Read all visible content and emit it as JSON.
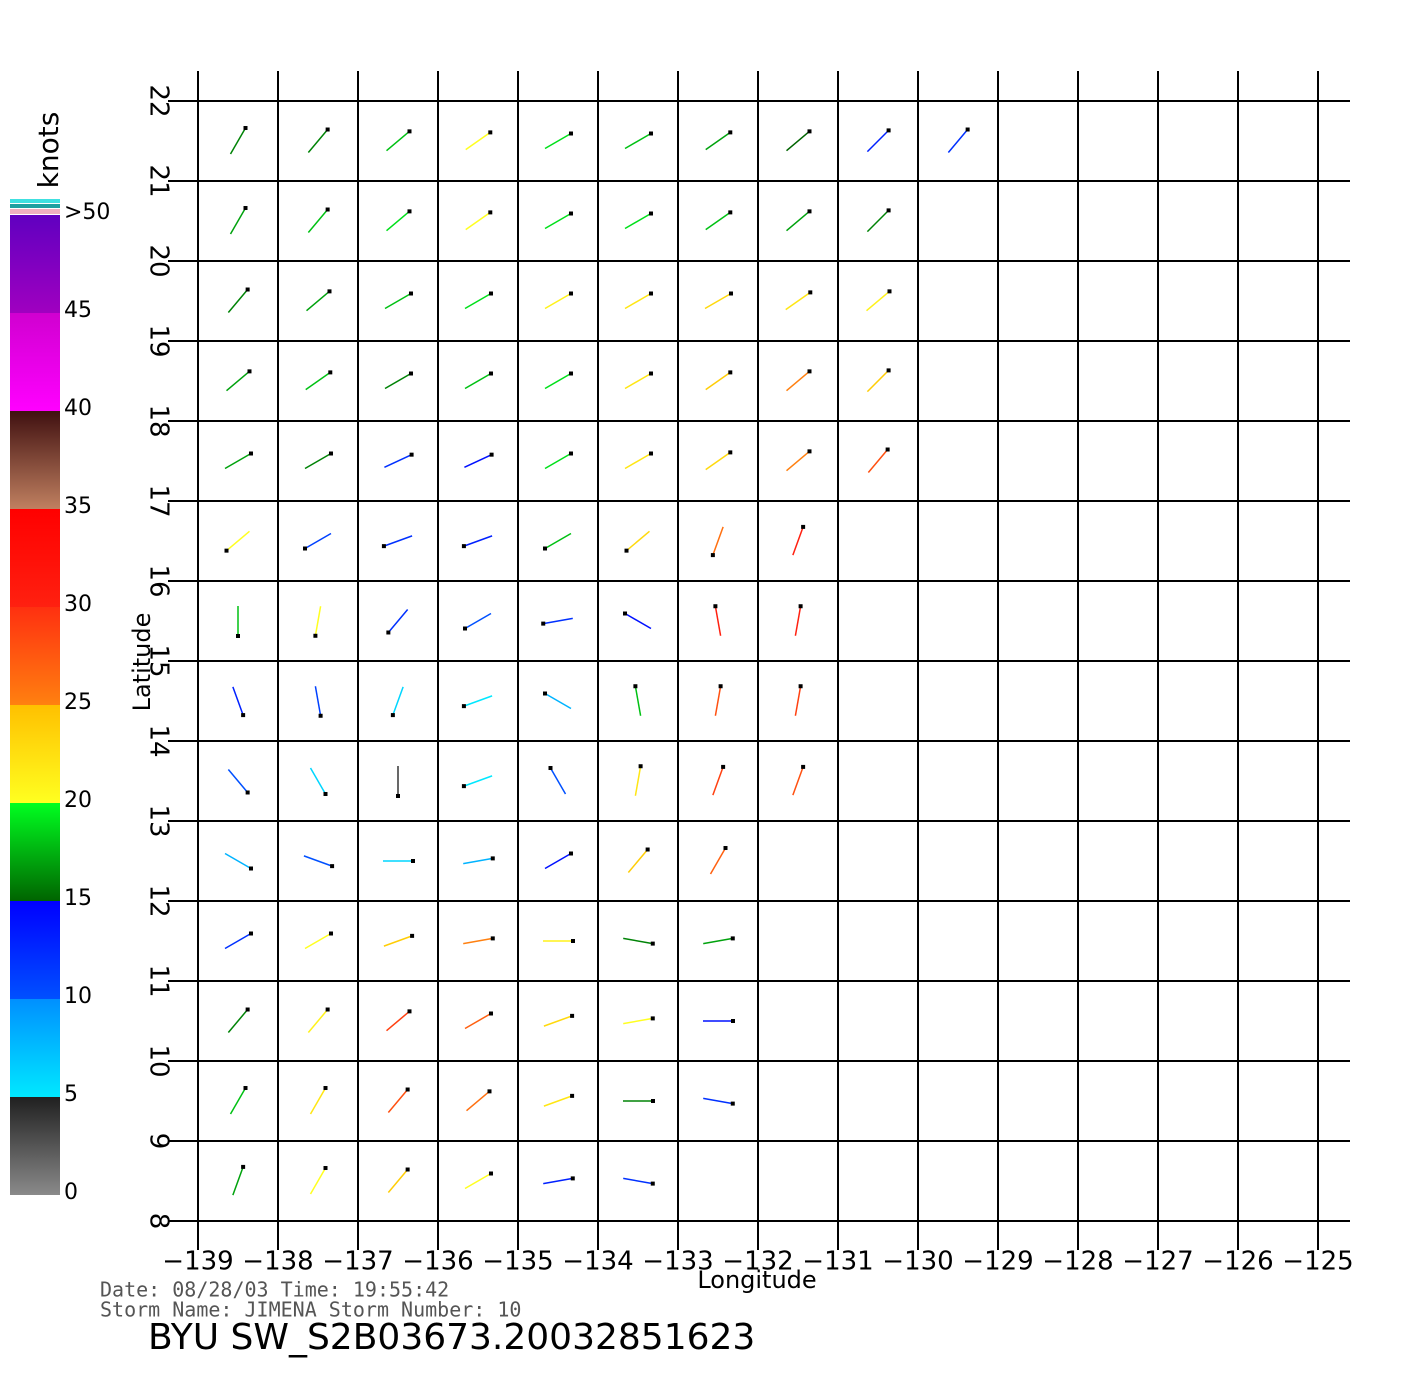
{
  "chart_data": {
    "type": "vector",
    "xlabel": "Longitude",
    "ylabel": "Latitude",
    "xlim": [
      -139,
      -125
    ],
    "ylim": [
      8,
      22
    ],
    "xticks": [
      {
        "value": -139,
        "label": "−139"
      },
      {
        "value": -138,
        "label": "−138"
      },
      {
        "value": -137,
        "label": "−137"
      },
      {
        "value": -136,
        "label": "−136"
      },
      {
        "value": -135,
        "label": "−135"
      },
      {
        "value": -134,
        "label": "−134"
      },
      {
        "value": -133,
        "label": "−133"
      },
      {
        "value": -132,
        "label": "−132"
      },
      {
        "value": -131,
        "label": "−131"
      },
      {
        "value": -130,
        "label": "−130"
      },
      {
        "value": -129,
        "label": "−129"
      },
      {
        "value": -128,
        "label": "−128"
      },
      {
        "value": -127,
        "label": "−127"
      },
      {
        "value": -126,
        "label": "−126"
      },
      {
        "value": -125,
        "label": "−125"
      }
    ],
    "yticks": [
      8,
      9,
      10,
      11,
      12,
      13,
      14,
      15,
      16,
      17,
      18,
      19,
      20,
      21,
      22
    ],
    "grid": true,
    "colorbar": {
      "label": "knots",
      "lim": [
        0,
        50
      ],
      "ticks": [
        0,
        5,
        10,
        15,
        20,
        25,
        30,
        35,
        40,
        45,
        {
          "value": 50,
          "label": ">50"
        }
      ],
      "segments": [
        {
          "from": 0,
          "to": 5,
          "colors": [
            "#8a8a8a",
            "#202020"
          ]
        },
        {
          "from": 5,
          "to": 10,
          "colors": [
            "#00e8ff",
            "#0090ff"
          ]
        },
        {
          "from": 10,
          "to": 15,
          "colors": [
            "#0050ff",
            "#0000ff"
          ]
        },
        {
          "from": 15,
          "to": 20,
          "colors": [
            "#006400",
            "#00ff20"
          ]
        },
        {
          "from": 20,
          "to": 25,
          "colors": [
            "#ffff20",
            "#ffc000"
          ]
        },
        {
          "from": 25,
          "to": 30,
          "colors": [
            "#ff8010",
            "#ff3010"
          ]
        },
        {
          "from": 30,
          "to": 35,
          "colors": [
            "#ff2010",
            "#ff0000"
          ]
        },
        {
          "from": 35,
          "to": 40,
          "colors": [
            "#c08060",
            "#401010"
          ]
        },
        {
          "from": 40,
          "to": 45,
          "colors": [
            "#ff00ff",
            "#d000d0"
          ]
        },
        {
          "from": 45,
          "to": 50,
          "colors": [
            "#a000c0",
            "#6000c0"
          ]
        }
      ]
    },
    "vectors": [
      {
        "lat": 8.5,
        "lon": [
          -138.5,
          -137.5,
          -136.5,
          -135.5,
          -134.5,
          -133.5
        ],
        "speed": [
          17,
          20,
          24,
          20,
          13,
          12
        ],
        "direction": [
          20,
          30,
          40,
          60,
          80,
          100
        ]
      },
      {
        "lat": 9.5,
        "lon": [
          -138.5,
          -137.5,
          -136.5,
          -135.5,
          -134.5,
          -133.5,
          -132.5
        ],
        "speed": [
          18,
          22,
          28,
          26,
          22,
          16,
          12
        ],
        "direction": [
          30,
          30,
          40,
          50,
          70,
          90,
          100
        ]
      },
      {
        "lat": 10.5,
        "lon": [
          -138.5,
          -137.5,
          -136.5,
          -135.5,
          -134.5,
          -133.5,
          -132.5
        ],
        "speed": [
          16,
          21,
          29,
          27,
          23,
          20,
          14
        ],
        "direction": [
          40,
          40,
          50,
          60,
          70,
          80,
          90
        ]
      },
      {
        "lat": 11.5,
        "lon": [
          -138.5,
          -137.5,
          -136.5,
          -135.5,
          -134.5,
          -133.5,
          -132.5
        ],
        "speed": [
          12,
          20,
          24,
          25,
          21,
          16,
          17
        ],
        "direction": [
          60,
          60,
          70,
          80,
          90,
          100,
          80
        ]
      },
      {
        "lat": 12.5,
        "lon": [
          -138.5,
          -137.5,
          -136.5,
          -135.5,
          -134.5,
          -133.5,
          -132.5
        ],
        "speed": [
          8,
          10,
          6,
          8,
          14,
          24,
          27
        ],
        "direction": [
          120,
          110,
          90,
          80,
          60,
          40,
          30
        ]
      },
      {
        "lat": 13.5,
        "lon": [
          -138.5,
          -137.5,
          -136.5,
          -135.5,
          -134.5,
          -133.5,
          -132.5,
          -131.5
        ],
        "speed": [
          10,
          6,
          4,
          5,
          10,
          22,
          29,
          28
        ],
        "direction": [
          140,
          150,
          180,
          250,
          330,
          10,
          20,
          20
        ]
      },
      {
        "lat": 14.5,
        "lon": [
          -138.5,
          -137.5,
          -136.5,
          -135.5,
          -134.5,
          -133.5,
          -132.5,
          -131.5
        ],
        "speed": [
          13,
          11,
          6,
          5,
          8,
          18,
          28,
          29
        ],
        "direction": [
          160,
          170,
          200,
          250,
          300,
          350,
          10,
          10
        ]
      },
      {
        "lat": 15.5,
        "lon": [
          -138.5,
          -137.5,
          -136.5,
          -135.5,
          -134.5,
          -133.5,
          -132.5,
          -131.5
        ],
        "speed": [
          18,
          20,
          12,
          10,
          12,
          14,
          30,
          30
        ],
        "direction": [
          180,
          190,
          220,
          240,
          260,
          300,
          350,
          10
        ]
      },
      {
        "lat": 16.5,
        "lon": [
          -138.5,
          -137.5,
          -136.5,
          -135.5,
          -134.5,
          -133.5,
          -132.5,
          -131.5
        ],
        "speed": [
          20,
          11,
          12,
          13,
          18,
          23,
          26,
          30
        ],
        "direction": [
          230,
          240,
          250,
          250,
          240,
          230,
          200,
          20
        ]
      },
      {
        "lat": 17.5,
        "lon": [
          -138.5,
          -137.5,
          -136.5,
          -135.5,
          -134.5,
          -133.5,
          -132.5,
          -131.5,
          -130.5
        ],
        "speed": [
          17,
          16,
          12,
          14,
          19,
          22,
          23,
          25,
          28
        ],
        "direction": [
          60,
          60,
          65,
          65,
          60,
          60,
          55,
          50,
          40
        ]
      },
      {
        "lat": 18.5,
        "lon": [
          -138.5,
          -137.5,
          -136.5,
          -135.5,
          -134.5,
          -133.5,
          -132.5,
          -131.5,
          -130.5
        ],
        "speed": [
          17,
          18,
          16,
          18,
          19,
          22,
          24,
          25,
          24
        ],
        "direction": [
          50,
          55,
          60,
          60,
          60,
          60,
          55,
          50,
          45
        ]
      },
      {
        "lat": 19.5,
        "lon": [
          -138.5,
          -137.5,
          -136.5,
          -135.5,
          -134.5,
          -133.5,
          -132.5,
          -131.5,
          -130.5
        ],
        "speed": [
          16,
          17,
          18,
          19,
          21,
          22,
          23,
          22,
          21
        ],
        "direction": [
          40,
          50,
          60,
          60,
          60,
          60,
          60,
          55,
          50
        ]
      },
      {
        "lat": 20.5,
        "lon": [
          -138.5,
          -137.5,
          -136.5,
          -135.5,
          -134.5,
          -133.5,
          -132.5,
          -131.5,
          -130.5
        ],
        "speed": [
          17,
          18,
          19,
          20,
          19,
          19,
          18,
          17,
          16
        ],
        "direction": [
          30,
          40,
          50,
          55,
          60,
          60,
          55,
          50,
          45
        ]
      },
      {
        "lat": 21.5,
        "lon": [
          -138.5,
          -137.5,
          -136.5,
          -135.5,
          -134.5,
          -133.5,
          -132.5,
          -131.5,
          -130.5,
          -129.5
        ],
        "speed": [
          16,
          16,
          18,
          20,
          19,
          18,
          17,
          15,
          13,
          12
        ],
        "direction": [
          30,
          40,
          50,
          55,
          60,
          60,
          55,
          50,
          45,
          40
        ]
      }
    ],
    "footer": [
      "Date: 08/28/03   Time: 19:55:42",
      "Storm  Name: JIMENA   Storm  Number: 10"
    ],
    "title": "BYU  SW_S2B03673.20032851623"
  }
}
